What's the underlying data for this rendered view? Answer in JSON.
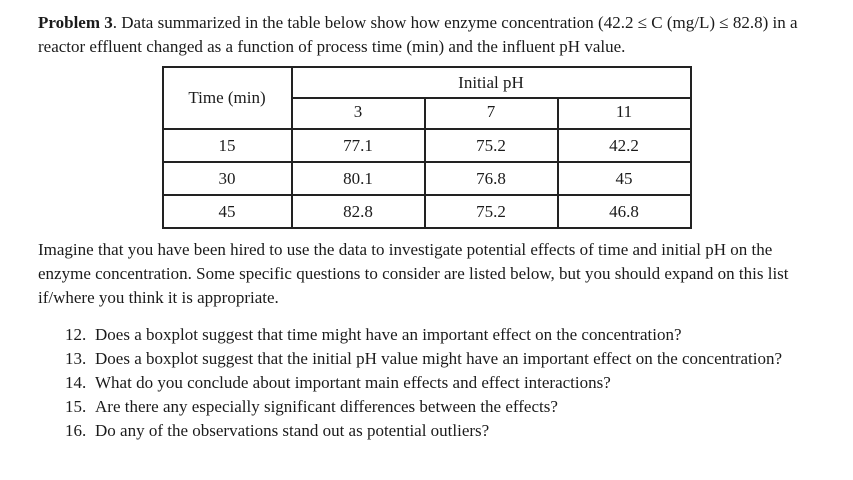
{
  "page": {
    "background": "#ffffff",
    "text_color": "#1b1b1b"
  },
  "intro": {
    "bold": "Problem 3",
    "rest": ". Data summarized in the table below show how enzyme concentration (42.2 ≤ C (mg/L) ≤ 82.8) in a reactor effluent changed as a function of process time (min) and the influent pH value."
  },
  "table": {
    "corner_header": "Time (min)",
    "group_header": "Initial pH",
    "ph_levels": [
      "3",
      "7",
      "11"
    ],
    "rows": [
      {
        "time": "15",
        "values": [
          "77.1",
          "75.2",
          "42.2"
        ]
      },
      {
        "time": "30",
        "values": [
          "80.1",
          "76.8",
          "45"
        ]
      },
      {
        "time": "45",
        "values": [
          "82.8",
          "75.2",
          "46.8"
        ]
      }
    ]
  },
  "body_paragraph": "Imagine that you have been hired to use the data to investigate potential effects of time and initial pH on the enzyme concentration. Some specific questions to consider are listed below, but you should expand on this list if/where you think it is appropriate.",
  "questions": [
    {
      "num": "12.",
      "text": "Does a boxplot suggest that time might have an important effect on the concentration?"
    },
    {
      "num": "13.",
      "text": "Does a boxplot suggest that the initial pH value might have an important effect on the concentration?"
    },
    {
      "num": "14.",
      "text": "What do you conclude about important main effects and effect interactions?"
    },
    {
      "num": "15.",
      "text": "Are there any especially significant differences between the effects?"
    },
    {
      "num": "16.",
      "text": "Do any of the observations stand out as potential outliers?"
    }
  ]
}
